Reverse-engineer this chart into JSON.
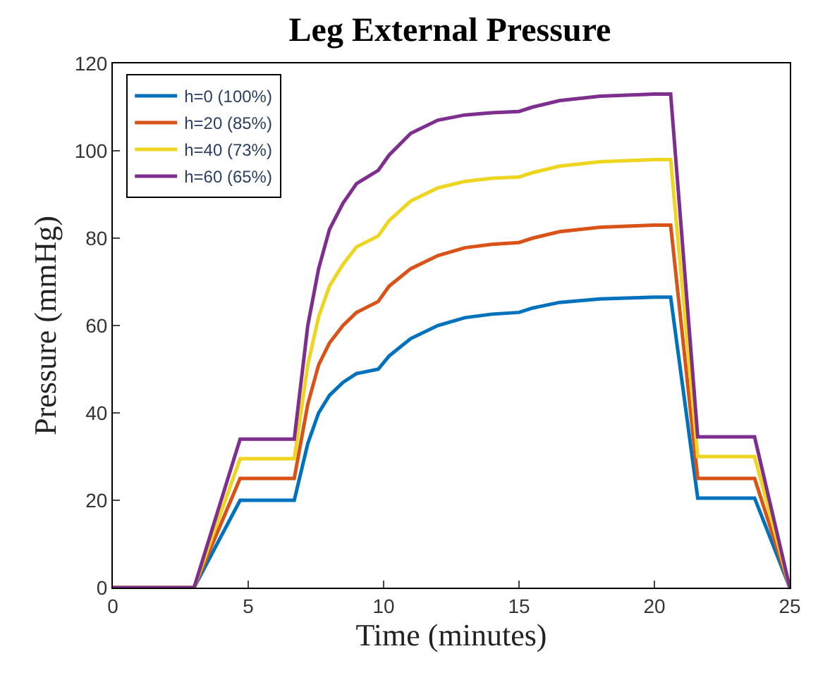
{
  "chart_data": {
    "type": "line",
    "title": "Leg External Pressure",
    "xlabel": "Time (minutes)",
    "ylabel": "Pressure (mmHg)",
    "x": [
      0,
      3,
      4.7,
      6.7,
      7.2,
      7.6,
      8,
      8.5,
      9,
      9.8,
      10.2,
      11,
      12,
      13,
      14,
      15,
      15.5,
      16.5,
      18,
      20,
      20.6,
      21.6,
      23.7,
      25
    ],
    "series": [
      {
        "name": "h=0 (100%)",
        "color": "#0072bd",
        "values": [
          0,
          0,
          20,
          20,
          33,
          40,
          44,
          47,
          49,
          50,
          53,
          57,
          60,
          61.8,
          62.6,
          63,
          64,
          65.3,
          66.1,
          66.5,
          66.5,
          20.5,
          20.5,
          0
        ]
      },
      {
        "name": "h=20 (85%)",
        "color": "#d95319",
        "values": [
          0,
          0,
          25,
          25,
          42,
          51,
          56,
          60,
          63,
          65.5,
          69,
          73,
          76,
          77.8,
          78.6,
          79,
          80,
          81.5,
          82.5,
          83,
          83,
          25,
          25,
          0
        ]
      },
      {
        "name": "h=40 (73%)",
        "color": "#edd520",
        "values": [
          0,
          0,
          29.5,
          29.5,
          51,
          62,
          69,
          74,
          78,
          80.5,
          84,
          88.5,
          91.5,
          93,
          93.7,
          94,
          95,
          96.5,
          97.5,
          98,
          98,
          30,
          30,
          0
        ]
      },
      {
        "name": "h=60 (65%)",
        "color": "#7e2f8e",
        "values": [
          0,
          0,
          34,
          34,
          60,
          73,
          82,
          88,
          92.5,
          95.5,
          99,
          104,
          107,
          108.2,
          108.7,
          109,
          110,
          111.5,
          112.5,
          113,
          113,
          34.5,
          34.5,
          0
        ]
      }
    ],
    "xlim": [
      0,
      25
    ],
    "xticks": [
      0,
      5,
      10,
      15,
      20,
      25
    ],
    "ylim": [
      0,
      120
    ],
    "yticks": [
      0,
      20,
      40,
      60,
      80,
      100,
      120
    ],
    "legend": "top left",
    "marker": "none",
    "line_style": "solid"
  }
}
